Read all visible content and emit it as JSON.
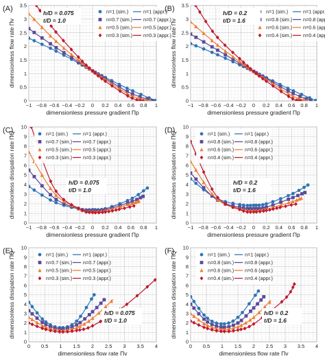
{
  "chart_data": [
    {
      "type": "line",
      "panel_label": "(A)",
      "xlabel": "dimensionless pressure gradient Πp",
      "ylabel": "dimensionless flow rate Πv",
      "xlim": [
        -1,
        1
      ],
      "ylim": [
        0,
        3.5
      ],
      "xticks": [
        "−1",
        "−0.8",
        "−0.6",
        "−0.4",
        "−0.2",
        "0",
        "0.2",
        "0.4",
        "0.6",
        "0.8",
        "1"
      ],
      "yticks": [
        "0",
        "0.5",
        "1",
        "1.5",
        "2",
        "2.5",
        "3",
        "3.5"
      ],
      "annotation": [
        "h/D = 0.075",
        "t/D = 1.0"
      ],
      "legend": [
        "n=1 (sim.)",
        "n=1 (appr.)",
        "n=0.7 (sim.)",
        "n=0.7 (appr.)",
        "n=0.5 (sim.)",
        "n=0.5 (appr.)",
        "n=0.3 (sim.)",
        "n=0.3 (appr.)"
      ],
      "legend_position": "top-right",
      "series": [
        {
          "name": "n=1",
          "color": "#2e75b6",
          "marker": "circle",
          "x": [
            -1,
            -0.6,
            -0.2,
            0,
            0.2,
            0.6,
            1
          ],
          "y": [
            2.3,
            1.86,
            1.36,
            1.1,
            0.86,
            0.4,
            0
          ]
        },
        {
          "name": "n=0.7",
          "color": "#5b4a9a",
          "marker": "square",
          "x": [
            -1,
            -0.6,
            -0.2,
            0,
            0.2,
            0.6,
            0.95
          ],
          "y": [
            2.65,
            2.0,
            1.4,
            1.1,
            0.82,
            0.28,
            0
          ]
        },
        {
          "name": "n=0.5",
          "color": "#ed7d31",
          "marker": "triangle",
          "x": [
            -1,
            -0.6,
            -0.2,
            0,
            0.2,
            0.6,
            0.92
          ],
          "y": [
            3.2,
            2.25,
            1.45,
            1.1,
            0.78,
            0.2,
            0
          ]
        },
        {
          "name": "n=0.3",
          "color": "#c0182e",
          "marker": "diamond",
          "x": [
            -0.88,
            -0.6,
            -0.2,
            0,
            0.2,
            0.6,
            0.8
          ],
          "y": [
            3.5,
            2.6,
            1.55,
            1.1,
            0.72,
            0.12,
            0
          ]
        }
      ]
    },
    {
      "type": "line",
      "panel_label": "(B)",
      "xlabel": "dimensionless pressure gradient Πp",
      "ylabel": "dimensionless flow rate Πv",
      "xlim": [
        -1,
        1
      ],
      "ylim": [
        0,
        3.5
      ],
      "xticks": [
        "−1",
        "−0.8",
        "−0.6",
        "−0.4",
        "−0.2",
        "0",
        "0.2",
        "0.4",
        "0.6",
        "0.8",
        "1"
      ],
      "yticks": [
        "0",
        "0.5",
        "1",
        "1.5",
        "2",
        "2.5",
        "3",
        "3.5"
      ],
      "annotation": [
        "h/D = 0.2",
        "t/D = 1.6"
      ],
      "legend": [
        "n=1 (sim.)",
        "n=1 (appr.)",
        "n=0.8 (sim.)",
        "n=0.8 (appr.)",
        "n=0.6 (sim.)",
        "n=0.6 (appr.)",
        "n=0.4 (sim.)",
        "n=0.4 (appr.)"
      ],
      "legend_position": "top-right",
      "series": [
        {
          "name": "n=1",
          "color": "#2e75b6",
          "marker": "circle",
          "x": [
            -1,
            -0.6,
            -0.2,
            0,
            0.2,
            0.6,
            1
          ],
          "y": [
            2.1,
            1.72,
            1.3,
            1.08,
            0.85,
            0.4,
            0
          ]
        },
        {
          "name": "n=0.8",
          "color": "#5b4a9a",
          "marker": "square",
          "x": [
            -1,
            -0.6,
            -0.2,
            0,
            0.2,
            0.6,
            0.92
          ],
          "y": [
            2.45,
            1.9,
            1.35,
            1.08,
            0.82,
            0.3,
            0
          ]
        },
        {
          "name": "n=0.6",
          "color": "#ed7d31",
          "marker": "triangle",
          "x": [
            -1,
            -0.6,
            -0.2,
            0,
            0.2,
            0.6,
            0.85
          ],
          "y": [
            2.9,
            2.1,
            1.4,
            1.08,
            0.78,
            0.2,
            0
          ]
        },
        {
          "name": "n=0.4",
          "color": "#c0182e",
          "marker": "diamond",
          "x": [
            -0.92,
            -0.6,
            -0.2,
            0,
            0.2,
            0.6,
            0.75
          ],
          "y": [
            3.5,
            2.4,
            1.5,
            1.08,
            0.72,
            0.1,
            0
          ]
        }
      ]
    },
    {
      "type": "line",
      "panel_label": "(C)",
      "xlabel": "dimensionless pressure gradient Πp",
      "ylabel": "dimensionless dissipation rate ΠQ",
      "xlim": [
        -1,
        1
      ],
      "ylim": [
        0,
        10
      ],
      "xticks": [
        "−1",
        "−0.8",
        "−0.6",
        "−0.4",
        "−0.2",
        "0",
        "0.2",
        "0.4",
        "0.6",
        "0.8",
        "1"
      ],
      "yticks": [
        "0",
        "1",
        "2",
        "3",
        "4",
        "5",
        "6",
        "7",
        "8",
        "9",
        "10"
      ],
      "annotation": [
        "h/D = 0.075",
        "t/D = 1.0"
      ],
      "legend": [
        "n=1 (sim.)",
        "n=1 (appr.)",
        "n=0.7 (sim.)",
        "n=0.7 (appr.)",
        "n=0.5 (sim.)",
        "n=0.5 (appr.)",
        "n=0.3 (sim.)",
        "n=0.3 (appr.)"
      ],
      "legend_position": "top",
      "series": [
        {
          "name": "n=1",
          "color": "#2e75b6",
          "marker": "circle",
          "x": [
            -1,
            -0.6,
            -0.2,
            0,
            0.2,
            0.6,
            0.87
          ],
          "y": [
            3.8,
            2.2,
            1.45,
            1.4,
            1.5,
            2.5,
            3.7
          ]
        },
        {
          "name": "n=0.7",
          "color": "#5b4a9a",
          "marker": "square",
          "x": [
            -1,
            -0.6,
            -0.2,
            0,
            0.2,
            0.6,
            0.8
          ],
          "y": [
            5.5,
            2.6,
            1.45,
            1.3,
            1.4,
            2.2,
            2.8
          ]
        },
        {
          "name": "n=0.5",
          "color": "#ed7d31",
          "marker": "triangle",
          "x": [
            -1,
            -0.6,
            -0.2,
            0,
            0.2,
            0.6,
            0.73
          ],
          "y": [
            7.4,
            3.1,
            1.45,
            1.2,
            1.3,
            2.0,
            2.3
          ]
        },
        {
          "name": "n=0.3",
          "color": "#c0182e",
          "marker": "diamond",
          "x": [
            -0.96,
            -0.6,
            -0.2,
            0,
            0.2,
            0.4,
            0.66
          ],
          "y": [
            10,
            3.6,
            1.45,
            1.1,
            1.15,
            1.4,
            1.8
          ]
        }
      ]
    },
    {
      "type": "line",
      "panel_label": "(D)",
      "xlabel": "dimensionless pressure gradient Πp",
      "ylabel": "dimensionless dissipation rate ΠQ",
      "xlim": [
        -1,
        1
      ],
      "ylim": [
        0,
        10
      ],
      "xticks": [
        "−1",
        "−0.8",
        "−0.6",
        "−0.4",
        "−0.2",
        "0",
        "0.2",
        "0.4",
        "0.6",
        "0.8",
        "1"
      ],
      "yticks": [
        "0",
        "1",
        "2",
        "3",
        "4",
        "5",
        "6",
        "7",
        "8",
        "9",
        "10"
      ],
      "annotation": [
        "h/D = 0.2",
        "t/D = 1.6"
      ],
      "legend": [
        "n=1 (sim.)",
        "n=1 (appr.)",
        "n=0.8 (sim.)",
        "n=0.8 (appr.)",
        "n=0.6 (sim.)",
        "n=0.6 (appr.)",
        "n=0.4 (sim.)",
        "n=0.4 (appr.)"
      ],
      "legend_position": "top",
      "series": [
        {
          "name": "n=1",
          "color": "#2e75b6",
          "marker": "circle",
          "x": [
            -1,
            -0.6,
            -0.2,
            0,
            0.2,
            0.6,
            0.87
          ],
          "y": [
            4.6,
            2.6,
            1.9,
            1.85,
            2.0,
            3.0,
            4.0
          ]
        },
        {
          "name": "n=0.8",
          "color": "#5b4a9a",
          "marker": "square",
          "x": [
            -1,
            -0.6,
            -0.2,
            0,
            0.2,
            0.6,
            0.82
          ],
          "y": [
            5.2,
            2.5,
            1.6,
            1.5,
            1.65,
            2.6,
            3.2
          ]
        },
        {
          "name": "n=0.6",
          "color": "#ed7d31",
          "marker": "triangle",
          "x": [
            -1,
            -0.6,
            -0.2,
            0,
            0.2,
            0.6,
            0.76
          ],
          "y": [
            6.4,
            2.6,
            1.45,
            1.3,
            1.45,
            2.2,
            2.6
          ]
        },
        {
          "name": "n=0.4",
          "color": "#c0182e",
          "marker": "diamond",
          "x": [
            -1,
            -0.6,
            -0.2,
            0,
            0.2,
            0.4,
            0.68
          ],
          "y": [
            8.5,
            2.9,
            1.35,
            1.15,
            1.3,
            1.6,
            2.0
          ]
        }
      ]
    },
    {
      "type": "line",
      "panel_label": "(E)",
      "xlabel": "dimensionless flow rate Πv",
      "ylabel": "dimensionless dissipation rate ΠQ",
      "xlim": [
        0,
        4
      ],
      "ylim": [
        0,
        10
      ],
      "xticks": [
        "0",
        "0.5",
        "1",
        "1.5",
        "2",
        "2.5",
        "3",
        "3.5",
        "4"
      ],
      "yticks": [
        "0",
        "1",
        "2",
        "3",
        "4",
        "5",
        "6",
        "7",
        "8",
        "9",
        "10"
      ],
      "annotation": [
        "h/D = 0.075",
        "t/D = 1.0"
      ],
      "legend": [
        "n=1 (sim.)",
        "n=1 (appr.)",
        "n=0.7 (sim.)",
        "n=0.7 (appr.)",
        "n=0.5 (sim.)",
        "n=0.5 (appr.)",
        "n=0.3 (sim.)",
        "n=0.3 (appr.)"
      ],
      "legend_position": "top",
      "series": [
        {
          "name": "n=1",
          "color": "#2e75b6",
          "marker": "circle",
          "x": [
            0,
            0.5,
            1,
            1.5,
            2.05
          ],
          "y": [
            4.2,
            2.2,
            1.5,
            2.2,
            5.0
          ]
        },
        {
          "name": "n=0.7",
          "color": "#5b4a9a",
          "marker": "square",
          "x": [
            0,
            0.5,
            1,
            1.5,
            2,
            2.4
          ],
          "y": [
            3.3,
            1.9,
            1.35,
            1.8,
            3.2,
            4.6
          ]
        },
        {
          "name": "n=0.5",
          "color": "#ed7d31",
          "marker": "triangle",
          "x": [
            0,
            0.5,
            1,
            1.5,
            2,
            2.65
          ],
          "y": [
            2.6,
            1.6,
            1.2,
            1.5,
            2.5,
            4.5
          ]
        },
        {
          "name": "n=0.3",
          "color": "#c0182e",
          "marker": "diamond",
          "x": [
            0,
            0.5,
            1,
            1.5,
            2,
            3,
            4
          ],
          "y": [
            2.0,
            1.35,
            1.05,
            1.2,
            1.7,
            3.8,
            6.7
          ]
        }
      ]
    },
    {
      "type": "line",
      "panel_label": "(F)",
      "xlabel": "dimensionless flow rate Πv",
      "ylabel": "dimensionless dissipation rate ΠQ",
      "xlim": [
        0,
        4
      ],
      "ylim": [
        0,
        10
      ],
      "xticks": [
        "0",
        "0.5",
        "1",
        "1.5",
        "2",
        "2.5",
        "3",
        "3.5",
        "4"
      ],
      "yticks": [
        "0",
        "1",
        "2",
        "3",
        "4",
        "5",
        "6",
        "7",
        "8",
        "9",
        "10"
      ],
      "annotation": [
        "h/D = 0.2",
        "t/D = 1.6"
      ],
      "legend": [
        "n=1 (sim.)",
        "n=1 (appr.)",
        "n=0.8 (sim.)",
        "n=0.8 (appr.)",
        "n=0.6 (sim.)",
        "n=0.6 (appr.)",
        "n=0.4 (sim.)",
        "n=0.4 (appr.)"
      ],
      "legend_position": "top",
      "series": [
        {
          "name": "n=1",
          "color": "#2e75b6",
          "marker": "circle",
          "x": [
            0,
            0.5,
            1,
            1.5,
            2.15
          ],
          "y": [
            4.8,
            2.6,
            1.9,
            2.6,
            5.4
          ]
        },
        {
          "name": "n=0.8",
          "color": "#5b4a9a",
          "marker": "square",
          "x": [
            0,
            0.5,
            1,
            1.5,
            2,
            2.35
          ],
          "y": [
            4.0,
            2.2,
            1.55,
            2.0,
            3.6,
            4.9
          ]
        },
        {
          "name": "n=0.6",
          "color": "#ed7d31",
          "marker": "triangle",
          "x": [
            0,
            0.5,
            1,
            1.5,
            2,
            2.55
          ],
          "y": [
            3.0,
            1.8,
            1.3,
            1.6,
            2.6,
            4.4
          ]
        },
        {
          "name": "n=0.4",
          "color": "#c0182e",
          "marker": "diamond",
          "x": [
            0,
            0.5,
            1,
            1.5,
            2,
            3,
            3.3
          ],
          "y": [
            2.2,
            1.45,
            1.1,
            1.25,
            1.9,
            4.6,
            6.2
          ]
        }
      ]
    }
  ]
}
